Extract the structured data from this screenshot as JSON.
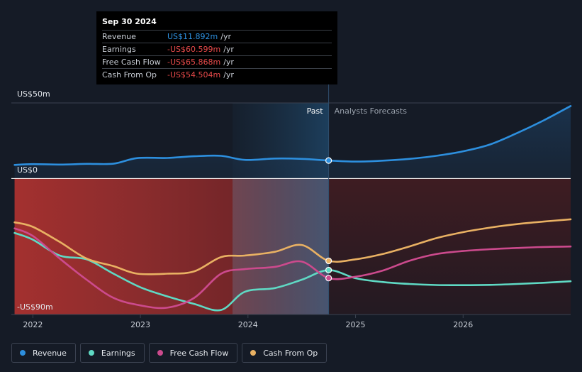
{
  "chart_data": {
    "type": "area",
    "y_axis": {
      "top_label": "US$50m",
      "zero_label": "US$0",
      "bottom_label": "-US$90m",
      "ylim": [
        -90,
        50
      ]
    },
    "x_axis": {
      "ticks": [
        "2022",
        "2023",
        "2024",
        "2025",
        "2026"
      ],
      "tick_values": [
        2022.0,
        2023.0,
        2024.0,
        2025.0,
        2026.0
      ],
      "xlim": [
        2021.8,
        2027.0
      ]
    },
    "divider": {
      "date": 2024.75,
      "past_label": "Past",
      "forecast_label": "Analysts Forecasts"
    },
    "series": [
      {
        "name": "Revenue",
        "color": "#2d8fde",
        "points": [
          [
            2021.83,
            9
          ],
          [
            2022.0,
            9.5
          ],
          [
            2022.25,
            9.2
          ],
          [
            2022.5,
            9.7
          ],
          [
            2022.75,
            9.8
          ],
          [
            2022.97,
            13.5
          ],
          [
            2023.25,
            13.6
          ],
          [
            2023.5,
            14.7
          ],
          [
            2023.75,
            15
          ],
          [
            2023.97,
            12.3
          ],
          [
            2024.25,
            13.2
          ],
          [
            2024.5,
            13
          ],
          [
            2024.75,
            11.9
          ],
          [
            2025.0,
            11.2
          ],
          [
            2025.25,
            11.8
          ],
          [
            2025.5,
            13
          ],
          [
            2025.75,
            15
          ],
          [
            2026.0,
            18
          ],
          [
            2026.25,
            22.5
          ],
          [
            2026.5,
            30
          ],
          [
            2026.75,
            38.5
          ],
          [
            2027.0,
            48
          ]
        ]
      },
      {
        "name": "Earnings",
        "color": "#5fd9c4",
        "points": [
          [
            2021.83,
            -36
          ],
          [
            2022.0,
            -40.5
          ],
          [
            2022.25,
            -51
          ],
          [
            2022.5,
            -53.5
          ],
          [
            2022.75,
            -63
          ],
          [
            2023.0,
            -72
          ],
          [
            2023.25,
            -78
          ],
          [
            2023.5,
            -83
          ],
          [
            2023.75,
            -87
          ],
          [
            2023.97,
            -75
          ],
          [
            2024.25,
            -72.5
          ],
          [
            2024.5,
            -67
          ],
          [
            2024.75,
            -60.6
          ],
          [
            2025.0,
            -66
          ],
          [
            2025.25,
            -68.5
          ],
          [
            2025.5,
            -69.8
          ],
          [
            2025.75,
            -70.5
          ],
          [
            2026.0,
            -70.6
          ],
          [
            2026.25,
            -70.4
          ],
          [
            2026.5,
            -69.8
          ],
          [
            2026.75,
            -69
          ],
          [
            2027.0,
            -68
          ]
        ]
      },
      {
        "name": "Free Cash Flow",
        "color": "#cc4a8d",
        "points": [
          [
            2021.83,
            -33
          ],
          [
            2022.0,
            -38
          ],
          [
            2022.25,
            -53
          ],
          [
            2022.5,
            -67
          ],
          [
            2022.75,
            -79
          ],
          [
            2023.0,
            -84
          ],
          [
            2023.25,
            -85.5
          ],
          [
            2023.5,
            -79
          ],
          [
            2023.75,
            -63
          ],
          [
            2023.97,
            -60
          ],
          [
            2024.25,
            -58.5
          ],
          [
            2024.5,
            -55
          ],
          [
            2024.75,
            -65.9
          ],
          [
            2025.0,
            -65
          ],
          [
            2025.25,
            -61
          ],
          [
            2025.5,
            -54.5
          ],
          [
            2025.75,
            -50
          ],
          [
            2026.0,
            -48
          ],
          [
            2026.25,
            -46.8
          ],
          [
            2026.5,
            -46
          ],
          [
            2026.75,
            -45.3
          ],
          [
            2027.0,
            -45
          ]
        ]
      },
      {
        "name": "Cash From Op",
        "color": "#e9b163",
        "points": [
          [
            2021.83,
            -29
          ],
          [
            2022.0,
            -32
          ],
          [
            2022.25,
            -42
          ],
          [
            2022.5,
            -53
          ],
          [
            2022.75,
            -58
          ],
          [
            2022.97,
            -63
          ],
          [
            2023.25,
            -63
          ],
          [
            2023.5,
            -61.5
          ],
          [
            2023.75,
            -52
          ],
          [
            2023.97,
            -51
          ],
          [
            2024.25,
            -48.5
          ],
          [
            2024.5,
            -44
          ],
          [
            2024.75,
            -54.5
          ],
          [
            2025.0,
            -53.5
          ],
          [
            2025.25,
            -50
          ],
          [
            2025.5,
            -45
          ],
          [
            2025.75,
            -39.5
          ],
          [
            2026.0,
            -35.5
          ],
          [
            2026.25,
            -32.5
          ],
          [
            2026.5,
            -30.2
          ],
          [
            2026.75,
            -28.5
          ],
          [
            2027.0,
            -27
          ]
        ]
      }
    ]
  },
  "tooltip": {
    "date": "Sep 30 2024",
    "unit": "/yr",
    "rows": [
      {
        "label": "Revenue",
        "value": "US$11.892m",
        "color": "#2d8fde"
      },
      {
        "label": "Earnings",
        "value": "-US$60.599m",
        "color": "#e84a4a"
      },
      {
        "label": "Free Cash Flow",
        "value": "-US$65.868m",
        "color": "#e84a4a"
      },
      {
        "label": "Cash From Op",
        "value": "-US$54.504m",
        "color": "#e84a4a"
      }
    ]
  },
  "legend": [
    {
      "label": "Revenue",
      "color": "#2d8fde"
    },
    {
      "label": "Earnings",
      "color": "#5fd9c4"
    },
    {
      "label": "Free Cash Flow",
      "color": "#cc4a8d"
    },
    {
      "label": "Cash From Op",
      "color": "#e9b163"
    }
  ]
}
